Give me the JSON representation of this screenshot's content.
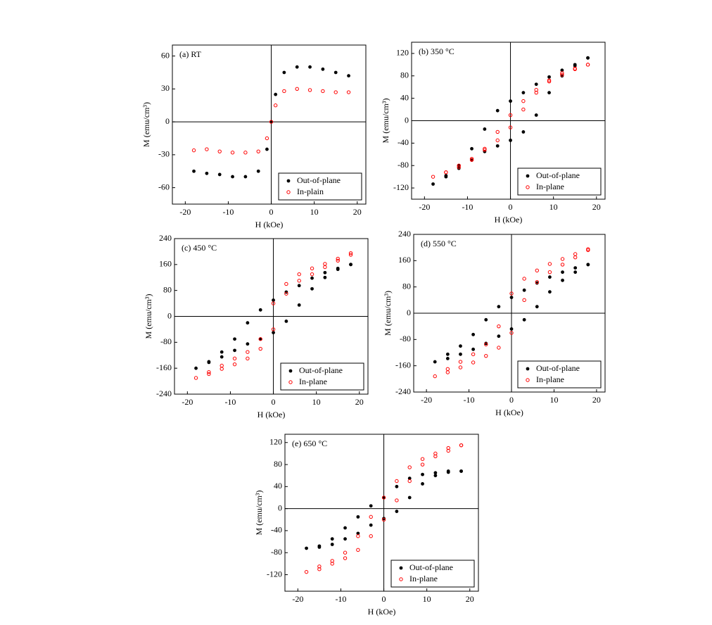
{
  "chart_data": [
    {
      "type": "scatter",
      "title": "(a) RT",
      "x_label": "H (kOe)",
      "y_label": "M (emu/cm³)",
      "xlim": [
        -23,
        22
      ],
      "xticks": [
        -20,
        -10,
        0,
        10,
        20
      ],
      "ylim": [
        -75,
        70
      ],
      "yticks": [
        -60,
        -30,
        0,
        30,
        60
      ],
      "x": [
        -18,
        -15,
        -12,
        -9,
        -6,
        -3,
        -1,
        0,
        1,
        3,
        6,
        9,
        12,
        15,
        18
      ],
      "series": [
        {
          "name": "Out-of-plane",
          "color": "#000000",
          "marker": "filled",
          "values": [
            -45,
            -47,
            -48,
            -50,
            -50,
            -45,
            -25,
            0,
            25,
            45,
            50,
            50,
            48,
            45,
            42
          ]
        },
        {
          "name": "In-plain",
          "color": "#ff0000",
          "marker": "open",
          "values": [
            -26,
            -25,
            -27,
            -28,
            -28,
            -27,
            -15,
            0,
            15,
            28,
            30,
            29,
            28,
            27,
            27
          ]
        }
      ],
      "legend": "lower right"
    },
    {
      "type": "scatter",
      "title": "(b) 350 °C",
      "x_label": "H (kOe)",
      "y_label": "M (emu/cm³)",
      "xlim": [
        -23,
        22
      ],
      "xticks": [
        -20,
        -10,
        0,
        10,
        20
      ],
      "ylim": [
        -140,
        140
      ],
      "yticks": [
        -120,
        -80,
        -40,
        0,
        40,
        80,
        120
      ],
      "x": [
        18,
        15,
        12,
        9,
        6,
        3,
        0,
        -3,
        -6,
        -9,
        -12,
        -15,
        -18,
        -15,
        -12,
        -9,
        -6,
        -3,
        0,
        3,
        6,
        9,
        12,
        15,
        18
      ],
      "series": [
        {
          "name": "Out-of-plane",
          "color": "#000000",
          "marker": "filled",
          "values": [
            112,
            100,
            90,
            78,
            65,
            50,
            35,
            18,
            -15,
            -50,
            -80,
            -100,
            -113,
            -98,
            -85,
            -70,
            -55,
            -45,
            -35,
            -20,
            10,
            50,
            80,
            98,
            112
          ]
        },
        {
          "name": "In-plane",
          "color": "#ff0000",
          "marker": "open",
          "values": [
            100,
            93,
            85,
            72,
            55,
            35,
            10,
            -20,
            -50,
            -68,
            -80,
            -92,
            -100,
            -92,
            -83,
            -70,
            -52,
            -35,
            -12,
            20,
            50,
            70,
            82,
            92,
            100
          ]
        }
      ],
      "legend": "lower right"
    },
    {
      "type": "scatter",
      "title": "(c) 450 °C",
      "x_label": "H (kOe)",
      "y_label": "M (emu/cm³)",
      "xlim": [
        -23,
        22
      ],
      "xticks": [
        -20,
        -10,
        0,
        10,
        20
      ],
      "ylim": [
        -240,
        240
      ],
      "yticks": [
        -240,
        -160,
        -80,
        0,
        80,
        160,
        240
      ],
      "x": [
        18,
        15,
        12,
        9,
        6,
        3,
        0,
        -3,
        -6,
        -9,
        -12,
        -15,
        -18,
        -15,
        -12,
        -9,
        -6,
        -3,
        0,
        3,
        6,
        9,
        12,
        15,
        18
      ],
      "series": [
        {
          "name": "Out-of-plane",
          "color": "#000000",
          "marker": "filled",
          "values": [
            160,
            148,
            135,
            118,
            95,
            75,
            50,
            20,
            -20,
            -70,
            -110,
            -140,
            -160,
            -142,
            -125,
            -105,
            -85,
            -70,
            -50,
            -15,
            35,
            85,
            120,
            145,
            160
          ]
        },
        {
          "name": "In-plane",
          "color": "#ff0000",
          "marker": "open",
          "values": [
            195,
            178,
            162,
            148,
            130,
            100,
            40,
            -70,
            -110,
            -130,
            -152,
            -172,
            -190,
            -178,
            -162,
            -148,
            -130,
            -100,
            -40,
            70,
            110,
            130,
            152,
            172,
            190
          ]
        }
      ],
      "legend": "lower right"
    },
    {
      "type": "scatter",
      "title": "(d) 550 °C",
      "x_label": "H (kOe)",
      "y_label": "M (emu/cm³)",
      "xlim": [
        -23,
        22
      ],
      "xticks": [
        -20,
        -10,
        0,
        10,
        20
      ],
      "ylim": [
        -240,
        240
      ],
      "yticks": [
        -240,
        -160,
        -80,
        0,
        80,
        160,
        240
      ],
      "x": [
        18,
        15,
        12,
        9,
        6,
        3,
        0,
        -3,
        -6,
        -9,
        -12,
        -15,
        -18,
        -15,
        -12,
        -9,
        -6,
        -3,
        0,
        3,
        6,
        9,
        12,
        15,
        18
      ],
      "series": [
        {
          "name": "Out-of-plane",
          "color": "#000000",
          "marker": "filled",
          "values": [
            148,
            138,
            125,
            110,
            92,
            70,
            48,
            20,
            -20,
            -65,
            -100,
            -125,
            -148,
            -138,
            -125,
            -110,
            -92,
            -70,
            -48,
            -20,
            20,
            65,
            100,
            125,
            148
          ]
        },
        {
          "name": "In-plane",
          "color": "#ff0000",
          "marker": "open",
          "values": [
            195,
            180,
            165,
            150,
            130,
            105,
            60,
            -40,
            -95,
            -125,
            -148,
            -170,
            -192,
            -180,
            -165,
            -150,
            -130,
            -105,
            -60,
            40,
            95,
            125,
            148,
            170,
            192
          ]
        }
      ],
      "legend": "lower right"
    },
    {
      "type": "scatter",
      "title": "(e) 650 °C",
      "x_label": "H (kOe)",
      "y_label": "M (emu/cm³)",
      "xlim": [
        -23,
        22
      ],
      "xticks": [
        -20,
        -10,
        0,
        10,
        20
      ],
      "ylim": [
        -150,
        135
      ],
      "yticks": [
        -120,
        -80,
        -40,
        0,
        40,
        80,
        120
      ],
      "x": [
        18,
        15,
        12,
        9,
        6,
        3,
        0,
        -3,
        -6,
        -9,
        -12,
        -15,
        -18,
        -15,
        -12,
        -9,
        -6,
        -3,
        0,
        3,
        6,
        9,
        12,
        15,
        18
      ],
      "series": [
        {
          "name": "Out-of-plane",
          "color": "#000000",
          "marker": "filled",
          "values": [
            68,
            68,
            65,
            62,
            55,
            40,
            20,
            5,
            -15,
            -35,
            -55,
            -68,
            -72,
            -70,
            -65,
            -55,
            -45,
            -30,
            -18,
            -5,
            20,
            45,
            60,
            66,
            68
          ]
        },
        {
          "name": "In-plane",
          "color": "#ff0000",
          "marker": "open",
          "values": [
            115,
            110,
            100,
            90,
            75,
            50,
            20,
            -15,
            -50,
            -80,
            -95,
            -105,
            -115,
            -110,
            -100,
            -90,
            -75,
            -50,
            -20,
            15,
            50,
            80,
            95,
            105,
            115
          ]
        }
      ],
      "legend": "lower right"
    }
  ]
}
